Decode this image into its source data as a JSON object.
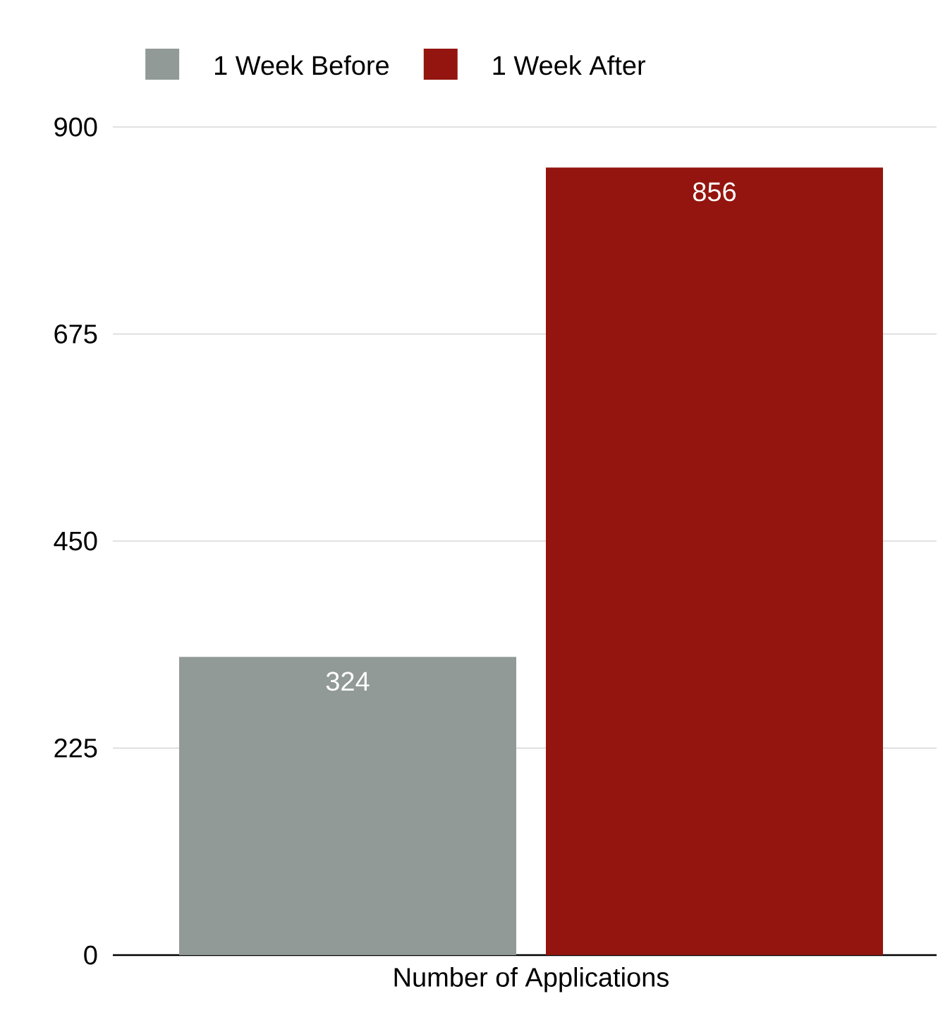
{
  "chart_data": {
    "type": "bar",
    "categories": [
      "Number of Applications"
    ],
    "series": [
      {
        "name": "1 Week Before",
        "color": "#929a98",
        "values": [
          324
        ]
      },
      {
        "name": "1 Week After",
        "color": "#94150f",
        "values": [
          856
        ]
      }
    ],
    "ylim": [
      0,
      900
    ],
    "yticks": [
      0,
      225,
      450,
      675,
      900
    ],
    "grid": "y",
    "legend": "top",
    "data_labels": true
  }
}
